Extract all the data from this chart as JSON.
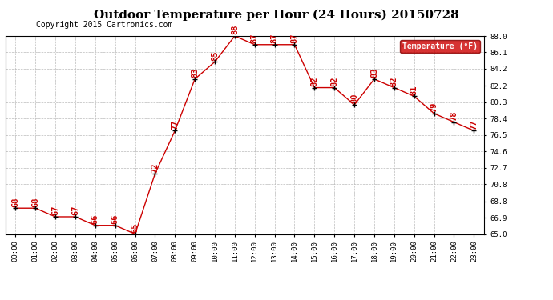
{
  "title": "Outdoor Temperature per Hour (24 Hours) 20150728",
  "copyright": "Copyright 2015 Cartronics.com",
  "hours": [
    "00:00",
    "01:00",
    "02:00",
    "03:00",
    "04:00",
    "05:00",
    "06:00",
    "07:00",
    "08:00",
    "09:00",
    "10:00",
    "11:00",
    "12:00",
    "13:00",
    "14:00",
    "15:00",
    "16:00",
    "17:00",
    "18:00",
    "19:00",
    "20:00",
    "21:00",
    "22:00",
    "23:00"
  ],
  "temps": [
    68,
    68,
    67,
    67,
    66,
    66,
    65,
    72,
    77,
    83,
    85,
    88,
    87,
    87,
    87,
    82,
    82,
    80,
    83,
    82,
    81,
    79,
    78,
    77
  ],
  "ylim_min": 65.0,
  "ylim_max": 88.0,
  "yticks": [
    65.0,
    66.9,
    68.8,
    70.8,
    72.7,
    74.6,
    76.5,
    78.4,
    80.3,
    82.2,
    84.2,
    86.1,
    88.0
  ],
  "ytick_labels": [
    "65.0",
    "66.9",
    "68.8",
    "70.8",
    "72.7",
    "74.6",
    "76.5",
    "78.4",
    "80.3",
    "82.2",
    "84.2",
    "86.1",
    "88.0"
  ],
  "line_color": "#cc0000",
  "marker_color": "#000000",
  "label_color": "#cc0000",
  "legend_text": "Temperature (°F)",
  "legend_bg": "#cc0000",
  "legend_fg": "#ffffff",
  "bg_color": "#ffffff",
  "grid_color": "#bbbbbb",
  "title_fontsize": 11,
  "copyright_fontsize": 7,
  "label_fontsize": 7.5,
  "tick_fontsize": 6.5
}
